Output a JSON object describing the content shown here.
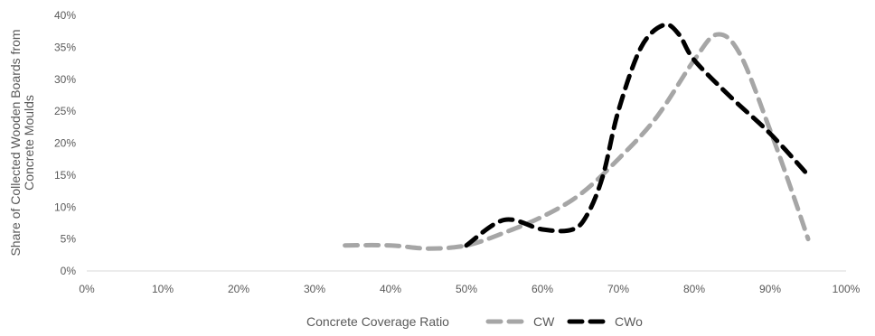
{
  "chart_data": {
    "type": "line",
    "title": "",
    "xlabel": "Concrete Coverage Ratio",
    "ylabel": "Share of Collected Wooden Boards from Concrete Moulds",
    "ylabel_lines": [
      "Share of Collected Wooden Boards from",
      "Concrete Moulds"
    ],
    "xlim": [
      0,
      100
    ],
    "ylim": [
      0,
      40
    ],
    "x_ticks": [
      0,
      10,
      20,
      30,
      40,
      50,
      60,
      70,
      80,
      90,
      100
    ],
    "x_tick_labels": [
      "0%",
      "10%",
      "20%",
      "30%",
      "40%",
      "50%",
      "60%",
      "70%",
      "80%",
      "90%",
      "100%"
    ],
    "y_ticks": [
      0,
      5,
      10,
      15,
      20,
      25,
      30,
      35,
      40
    ],
    "y_tick_labels": [
      "0%",
      "5%",
      "10%",
      "15%",
      "20%",
      "25%",
      "30%",
      "35%",
      "40%"
    ],
    "grid": false,
    "legend_position": "bottom",
    "series": [
      {
        "name": "CW",
        "color": "#a6a6a6",
        "dash": "dashed",
        "x": [
          34,
          40,
          45,
          50,
          55,
          60,
          65,
          70,
          75,
          80,
          83,
          86,
          90,
          93,
          95
        ],
        "y": [
          4,
          4,
          3.5,
          4,
          6,
          8.5,
          12,
          17.5,
          24,
          33,
          37,
          34,
          22,
          12,
          5
        ]
      },
      {
        "name": "CWo",
        "color": "#000000",
        "dash": "dashed",
        "x": [
          50,
          55,
          60,
          64,
          66,
          68,
          70,
          73,
          76,
          78,
          80,
          85,
          90,
          95
        ],
        "y": [
          4,
          8,
          6.5,
          6.5,
          9,
          15,
          25,
          35,
          38.5,
          37,
          33,
          27,
          21.5,
          15
        ]
      }
    ]
  }
}
